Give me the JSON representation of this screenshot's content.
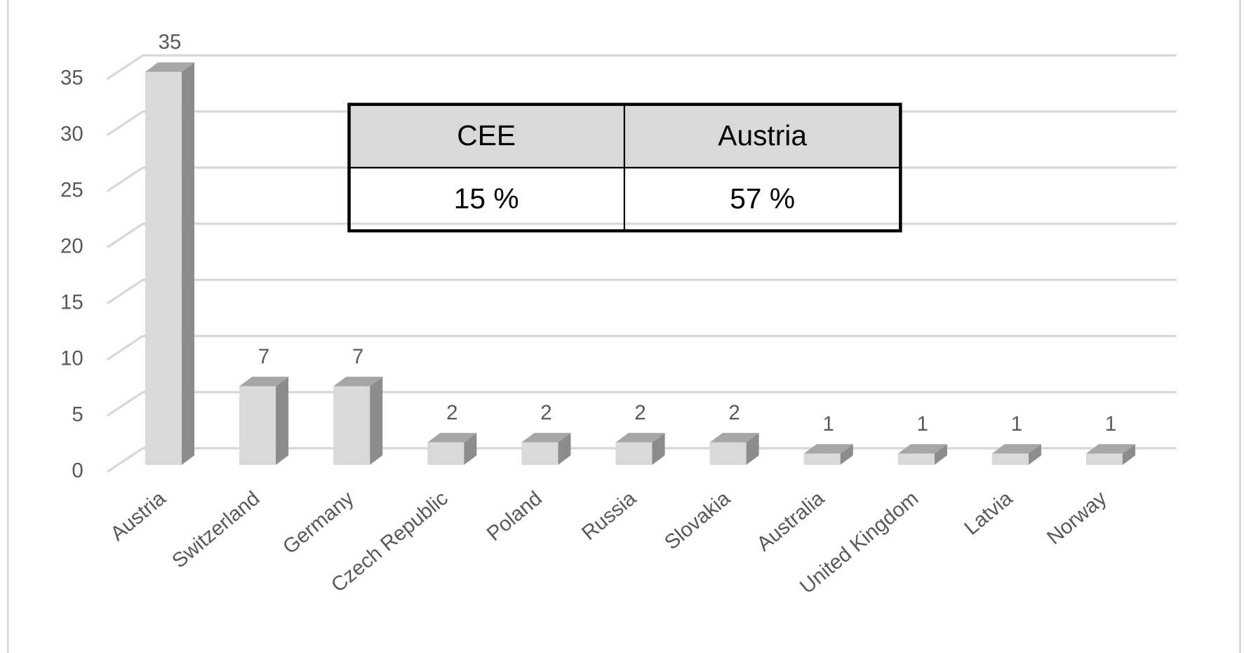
{
  "chart_data": {
    "type": "bar3d",
    "categories": [
      "Austria",
      "Switzerland",
      "Germany",
      "Czech Republic",
      "Poland",
      "Russia",
      "Slovakia",
      "Australia",
      "United Kingdom",
      "Latvia",
      "Norway"
    ],
    "values": [
      35,
      7,
      7,
      2,
      2,
      2,
      2,
      1,
      1,
      1,
      1
    ],
    "color": "#d9d9d9",
    "ylim": [
      0,
      35
    ],
    "yticks": [
      0,
      5,
      10,
      15,
      20,
      25,
      30,
      35
    ],
    "grid": true,
    "table": {
      "header": [
        "CEE",
        "Austria"
      ],
      "rows": [
        [
          "15 %",
          "57 %"
        ]
      ]
    }
  }
}
